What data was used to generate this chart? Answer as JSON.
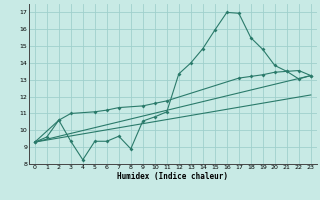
{
  "xlabel": "Humidex (Indice chaleur)",
  "xlim": [
    -0.5,
    23.5
  ],
  "ylim": [
    8,
    17.5
  ],
  "yticks": [
    8,
    9,
    10,
    11,
    12,
    13,
    14,
    15,
    16,
    17
  ],
  "xticks": [
    0,
    1,
    2,
    3,
    4,
    5,
    6,
    7,
    8,
    9,
    10,
    11,
    12,
    13,
    14,
    15,
    16,
    17,
    18,
    19,
    20,
    21,
    22,
    23
  ],
  "bg_color": "#c8eae5",
  "grid_color": "#a0d0cc",
  "line_color": "#2a7a6a",
  "line1_x": [
    0,
    1,
    2,
    3,
    4,
    5,
    6,
    7,
    8,
    9,
    10,
    11,
    12,
    13,
    14,
    15,
    16,
    17,
    18,
    19,
    20,
    21,
    22,
    23
  ],
  "line1_y": [
    9.3,
    9.6,
    10.6,
    9.35,
    8.25,
    9.35,
    9.35,
    9.65,
    8.9,
    10.55,
    10.8,
    11.1,
    13.35,
    14.0,
    14.85,
    15.95,
    17.0,
    16.95,
    15.5,
    14.8,
    13.85,
    13.5,
    13.05,
    13.25
  ],
  "line2_x": [
    0,
    2,
    3,
    5,
    6,
    7,
    9,
    10,
    11,
    17,
    18,
    19,
    20,
    21,
    22,
    23
  ],
  "line2_y": [
    9.3,
    10.6,
    11.0,
    11.1,
    11.2,
    11.35,
    11.45,
    11.6,
    11.75,
    13.1,
    13.2,
    13.3,
    13.45,
    13.5,
    13.55,
    13.25
  ],
  "line3_x": [
    0,
    23
  ],
  "line3_y": [
    9.3,
    13.25
  ],
  "line4_x": [
    0,
    23
  ],
  "line4_y": [
    9.3,
    12.1
  ]
}
